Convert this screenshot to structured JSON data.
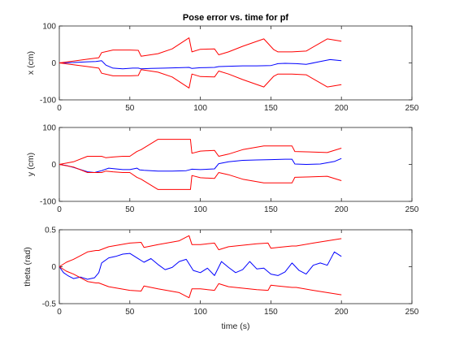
{
  "chart_data": [
    {
      "type": "line",
      "title": "Pose error vs. time for pf",
      "xlabel": "",
      "ylabel": "x (cm)",
      "xlim": [
        0,
        250
      ],
      "ylim": [
        -100,
        100
      ],
      "xticks": [
        "0",
        "50",
        "100",
        "150",
        "200",
        "250"
      ],
      "yticks": [
        "-100",
        "0",
        "100"
      ],
      "grid": false,
      "colors": {
        "error": "#0000ff",
        "bound": "#ff0000"
      },
      "series": [
        {
          "role": "error",
          "x": [
            0,
            10,
            20,
            26,
            30,
            33,
            38,
            45,
            52,
            56,
            58,
            65,
            75,
            85,
            92,
            94,
            100,
            110,
            113,
            120,
            130,
            140,
            150,
            152,
            155,
            160,
            168,
            175,
            185,
            192,
            200
          ],
          "y": [
            0,
            1,
            3,
            4,
            6,
            -6,
            -14,
            -16,
            -14,
            -14,
            -16,
            -15,
            -14,
            -13,
            -12,
            -15,
            -13,
            -12,
            -10,
            -9,
            -8,
            -8,
            -7,
            -5,
            -2,
            -1,
            -2,
            -4,
            4,
            9,
            6
          ]
        },
        {
          "role": "upper",
          "x": [
            0,
            10,
            20,
            28,
            30,
            38,
            50,
            56,
            58,
            70,
            80,
            92,
            94,
            100,
            110,
            113,
            120,
            130,
            145,
            152,
            155,
            165,
            175,
            190,
            200
          ],
          "y": [
            0,
            5,
            10,
            14,
            28,
            35,
            35,
            34,
            18,
            25,
            38,
            68,
            30,
            37,
            38,
            22,
            30,
            45,
            65,
            36,
            30,
            30,
            32,
            65,
            59
          ]
        },
        {
          "role": "lower",
          "x": [
            0,
            10,
            20,
            28,
            30,
            38,
            50,
            56,
            58,
            70,
            80,
            92,
            94,
            100,
            110,
            113,
            120,
            130,
            145,
            152,
            155,
            165,
            175,
            190,
            200
          ],
          "y": [
            0,
            -5,
            -10,
            -14,
            -28,
            -35,
            -35,
            -34,
            -18,
            -25,
            -38,
            -68,
            -30,
            -37,
            -38,
            -22,
            -30,
            -45,
            -65,
            -36,
            -30,
            -30,
            -32,
            -65,
            -59
          ]
        }
      ]
    },
    {
      "type": "line",
      "title": "",
      "xlabel": "",
      "ylabel": "y (cm)",
      "xlim": [
        0,
        250
      ],
      "ylim": [
        -100,
        100
      ],
      "xticks": [
        "0",
        "50",
        "100",
        "150",
        "200",
        "250"
      ],
      "yticks": [
        "-100",
        "0",
        "100"
      ],
      "grid": false,
      "colors": {
        "error": "#0000ff",
        "bound": "#ff0000"
      },
      "series": [
        {
          "role": "error",
          "x": [
            0,
            5,
            10,
            15,
            20,
            25,
            28,
            30,
            35,
            40,
            45,
            50,
            55,
            57,
            60,
            70,
            80,
            90,
            92,
            94,
            100,
            110,
            113,
            120,
            130,
            140,
            150,
            160,
            165,
            167,
            175,
            185,
            195,
            200
          ],
          "y": [
            0,
            -3,
            -8,
            -14,
            -20,
            -22,
            -19,
            -17,
            -10,
            -12,
            -14,
            -14,
            -10,
            -15,
            -16,
            -18,
            -18,
            -17,
            -15,
            -13,
            -14,
            -12,
            2,
            7,
            11,
            12,
            13,
            14,
            14,
            1,
            0,
            1,
            8,
            16
          ]
        },
        {
          "role": "upper",
          "x": [
            0,
            10,
            20,
            30,
            33,
            38,
            45,
            50,
            55,
            58,
            70,
            85,
            93,
            94,
            100,
            110,
            113,
            120,
            130,
            145,
            155,
            165,
            167,
            175,
            190,
            200
          ],
          "y": [
            0,
            7,
            22,
            22,
            18,
            20,
            22,
            22,
            35,
            40,
            68,
            68,
            68,
            30,
            36,
            38,
            22,
            28,
            40,
            50,
            50,
            50,
            35,
            34,
            32,
            44
          ]
        },
        {
          "role": "lower",
          "x": [
            0,
            10,
            20,
            30,
            33,
            38,
            45,
            50,
            55,
            58,
            70,
            85,
            93,
            94,
            100,
            110,
            113,
            120,
            130,
            145,
            155,
            165,
            167,
            175,
            190,
            200
          ],
          "y": [
            0,
            -7,
            -22,
            -22,
            -18,
            -20,
            -22,
            -22,
            -35,
            -40,
            -68,
            -68,
            -68,
            -30,
            -36,
            -38,
            -22,
            -28,
            -40,
            -50,
            -50,
            -50,
            -35,
            -34,
            -32,
            -44
          ]
        }
      ]
    },
    {
      "type": "line",
      "title": "",
      "xlabel": "time (s)",
      "ylabel": "theta (rad)",
      "xlim": [
        0,
        250
      ],
      "ylim": [
        -0.5,
        0.5
      ],
      "xticks": [
        "0",
        "50",
        "100",
        "150",
        "200",
        "250"
      ],
      "yticks": [
        "-0.5",
        "0",
        "0.5"
      ],
      "grid": false,
      "colors": {
        "error": "#0000ff",
        "bound": "#ff0000"
      },
      "series": [
        {
          "role": "error",
          "x": [
            0,
            3,
            6,
            10,
            15,
            20,
            25,
            28,
            30,
            35,
            40,
            45,
            50,
            55,
            60,
            65,
            70,
            75,
            80,
            85,
            90,
            95,
            100,
            105,
            110,
            115,
            120,
            125,
            130,
            135,
            140,
            145,
            150,
            155,
            160,
            165,
            170,
            175,
            180,
            185,
            190,
            195,
            200
          ],
          "y": [
            0,
            -0.08,
            -0.12,
            -0.16,
            -0.14,
            -0.17,
            -0.15,
            -0.08,
            0.05,
            0.12,
            0.14,
            0.17,
            0.18,
            0.12,
            0.06,
            0.11,
            0.03,
            -0.04,
            -0.01,
            0.07,
            0.1,
            -0.05,
            -0.08,
            -0.02,
            -0.12,
            0.07,
            -0.01,
            -0.08,
            -0.04,
            0.07,
            -0.03,
            -0.02,
            -0.1,
            -0.12,
            -0.07,
            0.05,
            -0.05,
            -0.1,
            0.02,
            0.05,
            0.02,
            0.2,
            0.14
          ]
        },
        {
          "role": "upper",
          "x": [
            0,
            5,
            10,
            15,
            20,
            26,
            28,
            35,
            50,
            58,
            60,
            70,
            85,
            90,
            92,
            94,
            100,
            110,
            113,
            120,
            140,
            148,
            150,
            155,
            165,
            168,
            180,
            200
          ],
          "y": [
            0,
            0.06,
            0.1,
            0.15,
            0.2,
            0.22,
            0.22,
            0.27,
            0.32,
            0.33,
            0.26,
            0.3,
            0.35,
            0.4,
            0.42,
            0.3,
            0.3,
            0.32,
            0.23,
            0.27,
            0.31,
            0.32,
            0.25,
            0.26,
            0.28,
            0.28,
            0.32,
            0.38
          ]
        },
        {
          "role": "lower",
          "x": [
            0,
            5,
            10,
            15,
            20,
            26,
            28,
            35,
            50,
            58,
            60,
            70,
            85,
            90,
            92,
            94,
            100,
            110,
            113,
            120,
            140,
            148,
            150,
            155,
            165,
            168,
            180,
            200
          ],
          "y": [
            0,
            -0.06,
            -0.1,
            -0.15,
            -0.2,
            -0.22,
            -0.22,
            -0.27,
            -0.32,
            -0.33,
            -0.26,
            -0.3,
            -0.35,
            -0.4,
            -0.42,
            -0.3,
            -0.3,
            -0.32,
            -0.23,
            -0.27,
            -0.31,
            -0.32,
            -0.25,
            -0.26,
            -0.28,
            -0.28,
            -0.32,
            -0.38
          ]
        }
      ]
    }
  ]
}
